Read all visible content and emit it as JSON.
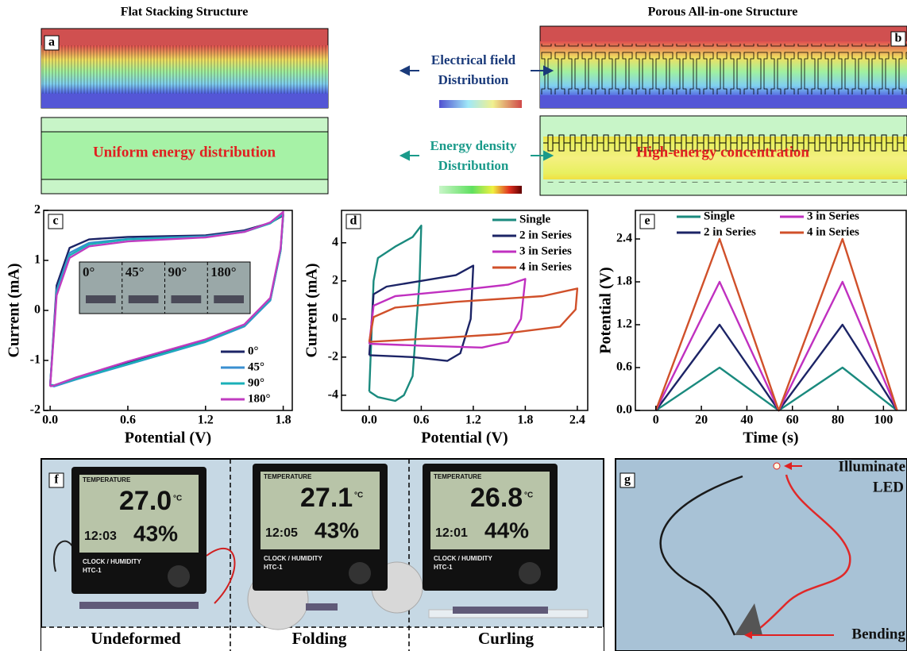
{
  "headings": {
    "left": "Flat Stacking Structure",
    "right": "Porous All-in-one Structure"
  },
  "panel_labels": {
    "a": "a",
    "b": "b",
    "f": "f",
    "g": "g"
  },
  "center_labels": {
    "field": [
      "Electrical field",
      "Distribution"
    ],
    "energy": [
      "Energy density",
      "Distribution"
    ]
  },
  "callouts": {
    "uniform": "Uniform energy distribution",
    "concentration": "High-energy concentration"
  },
  "photo_f": {
    "captions": [
      "Undeformed",
      "Folding",
      "Curling"
    ],
    "displays": [
      {
        "header": "TEMPERATURE",
        "temp": "27.0",
        "unit": "°C",
        "time": "12:03",
        "humidity": "43%"
      },
      {
        "header": "TEMPERATURE",
        "temp": "27.1",
        "unit": "°C",
        "time": "12:05",
        "humidity": "43%"
      },
      {
        "header": "TEMPERATURE",
        "temp": "26.8",
        "unit": "°C",
        "time": "12:01",
        "humidity": "44%"
      }
    ],
    "brand": "CLOCK / HUMIDITY",
    "model": "HTC-1"
  },
  "photo_g": {
    "annotations": [
      "Illuminate",
      "LED",
      "Bending"
    ]
  },
  "chart_data": [
    {
      "type": "line",
      "panel": "c",
      "xlabel": "Potential (V)",
      "ylabel": "Current (mA)",
      "xlim": [
        -0.05,
        1.87
      ],
      "ylim": [
        -2,
        2
      ],
      "xticks": [
        {
          "value": 0,
          "label": "0.0"
        },
        {
          "value": 0.6,
          "label": "0.6"
        },
        {
          "value": 1.2,
          "label": "1.2"
        },
        {
          "value": 1.8,
          "label": "1.8"
        }
      ],
      "yticks": [
        -2,
        -1,
        0,
        1,
        2
      ],
      "legend": "lower right",
      "legend_columns": 1,
      "inset_labels": [
        "0°",
        "45°",
        "90°",
        "180°"
      ],
      "series": [
        {
          "name": "0°",
          "color": "#1c2466",
          "x": [
            0,
            0.05,
            0.15,
            0.3,
            0.6,
            1.2,
            1.5,
            1.7,
            1.8,
            1.78,
            1.7,
            1.5,
            1.2,
            0.6,
            0.2,
            0.03,
            0
          ],
          "values": [
            -1.5,
            0.5,
            1.25,
            1.42,
            1.47,
            1.5,
            1.6,
            1.75,
            1.9,
            1.2,
            0.2,
            -0.3,
            -0.6,
            -1.05,
            -1.35,
            -1.5,
            -1.5
          ]
        },
        {
          "name": "45°",
          "color": "#3a8fd0",
          "x": [
            0,
            0.05,
            0.15,
            0.3,
            0.6,
            1.2,
            1.5,
            1.7,
            1.8,
            1.78,
            1.7,
            1.5,
            1.2,
            0.6,
            0.2,
            0.03,
            0
          ],
          "values": [
            -1.5,
            0.4,
            1.15,
            1.35,
            1.43,
            1.48,
            1.58,
            1.75,
            1.92,
            1.2,
            0.2,
            -0.32,
            -0.63,
            -1.08,
            -1.38,
            -1.52,
            -1.5
          ]
        },
        {
          "name": "90°",
          "color": "#1ab0b8",
          "x": [
            0,
            0.05,
            0.15,
            0.3,
            0.6,
            1.2,
            1.5,
            1.7,
            1.8,
            1.78,
            1.7,
            1.5,
            1.2,
            0.6,
            0.2,
            0.03,
            0
          ],
          "values": [
            -1.48,
            0.35,
            1.1,
            1.32,
            1.42,
            1.47,
            1.57,
            1.74,
            1.93,
            1.2,
            0.22,
            -0.3,
            -0.62,
            -1.07,
            -1.37,
            -1.5,
            -1.48
          ]
        },
        {
          "name": "180°",
          "color": "#c03cc0",
          "x": [
            0,
            0.05,
            0.15,
            0.3,
            0.6,
            1.2,
            1.5,
            1.7,
            1.8,
            1.78,
            1.7,
            1.5,
            1.2,
            0.6,
            0.2,
            0.03,
            0
          ],
          "values": [
            -1.52,
            0.3,
            1.05,
            1.28,
            1.38,
            1.46,
            1.57,
            1.76,
            1.97,
            1.25,
            0.25,
            -0.28,
            -0.58,
            -1.02,
            -1.34,
            -1.5,
            -1.52
          ]
        }
      ]
    },
    {
      "type": "line",
      "panel": "d",
      "xlabel": "Potential (V)",
      "ylabel": "Current (mA)",
      "xlim": [
        -0.32,
        2.52
      ],
      "ylim": [
        -4.8,
        5.7
      ],
      "xticks": [
        {
          "value": 0,
          "label": "0.0"
        },
        {
          "value": 0.6,
          "label": "0.6"
        },
        {
          "value": 1.2,
          "label": "1.2"
        },
        {
          "value": 1.8,
          "label": "1.8"
        },
        {
          "value": 2.4,
          "label": "2.4"
        }
      ],
      "yticks": [
        -4,
        -2,
        0,
        2,
        4
      ],
      "legend": "upper right",
      "legend_columns": 1,
      "series": [
        {
          "name": "Single",
          "color": "#1a8a7e",
          "x": [
            0,
            0.05,
            0.1,
            0.3,
            0.5,
            0.6,
            0.58,
            0.5,
            0.4,
            0.3,
            0.1,
            0
          ],
          "values": [
            -3.8,
            2,
            3.2,
            3.8,
            4.3,
            4.9,
            2,
            -3,
            -4,
            -4.3,
            -4.1,
            -3.8
          ]
        },
        {
          "name": "2 in Series",
          "color": "#1c2466",
          "x": [
            0,
            0.05,
            0.2,
            0.6,
            1.0,
            1.2,
            1.17,
            1.05,
            0.9,
            0.5,
            0
          ],
          "values": [
            -1.9,
            1.3,
            1.7,
            2,
            2.3,
            2.8,
            0,
            -1.8,
            -2.2,
            -2,
            -1.9
          ]
        },
        {
          "name": "3 in Series",
          "color": "#c030c0",
          "x": [
            0,
            0.05,
            0.3,
            1.0,
            1.6,
            1.8,
            1.75,
            1.6,
            1.3,
            0.6,
            0
          ],
          "values": [
            -1.3,
            0.7,
            1.2,
            1.5,
            1.8,
            2.1,
            0,
            -1.2,
            -1.5,
            -1.4,
            -1.3
          ]
        },
        {
          "name": "4 in Series",
          "color": "#d0502a",
          "x": [
            0,
            0.05,
            0.3,
            1.0,
            2.0,
            2.4,
            2.38,
            2.2,
            1.5,
            0.8,
            0
          ],
          "values": [
            -1.2,
            0.1,
            0.6,
            0.9,
            1.2,
            1.6,
            0.5,
            -0.4,
            -0.8,
            -1.0,
            -1.2
          ]
        }
      ]
    },
    {
      "type": "line",
      "panel": "e",
      "xlabel": "Time (s)",
      "ylabel": "Potential (V)",
      "xlim": [
        -9,
        110
      ],
      "ylim": [
        0,
        2.8
      ],
      "xticks": [
        0,
        20,
        40,
        60,
        80,
        100
      ],
      "yticks": [
        {
          "value": 0,
          "label": "0.0"
        },
        {
          "value": 0.6,
          "label": "0.6"
        },
        {
          "value": 1.2,
          "label": "1.2"
        },
        {
          "value": 1.8,
          "label": "1.8"
        },
        {
          "value": 2.4,
          "label": "2.4"
        }
      ],
      "legend": "upper",
      "legend_columns": 2,
      "x": [
        0,
        28,
        54,
        82,
        106
      ],
      "series": [
        {
          "name": "Single",
          "color": "#1a8a7e",
          "values": [
            0,
            0.6,
            0,
            0.6,
            0
          ]
        },
        {
          "name": "2 in Series",
          "color": "#1c2466",
          "values": [
            0,
            1.2,
            0,
            1.2,
            0
          ]
        },
        {
          "name": "3 in Series",
          "color": "#c030c0",
          "values": [
            0,
            1.8,
            0,
            1.8,
            0
          ]
        },
        {
          "name": "4 in Series",
          "color": "#d0502a",
          "values": [
            0,
            2.4,
            0,
            2.4,
            0
          ]
        }
      ]
    }
  ]
}
